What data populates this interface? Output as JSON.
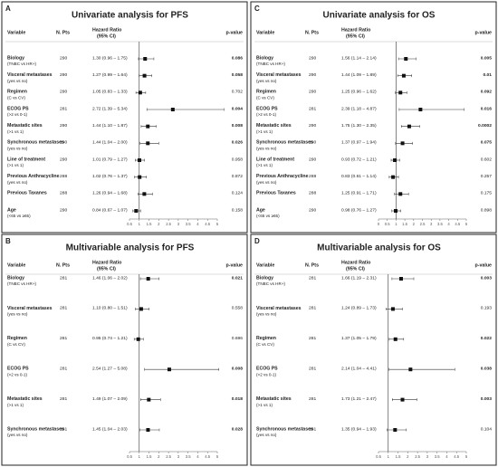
{
  "chart_data": [
    {
      "type": "forest",
      "panel": "A",
      "title": "Univariate analysis for PFS",
      "variable_header": "Variable",
      "n_header": "N. Pts",
      "hr_header": [
        "Hazard Ratio",
        "(95% CI)"
      ],
      "p_header": "p-value",
      "categories": [
        "Biology",
        "Visceral metastases",
        "Regimen",
        "ECOG PS",
        "Metastatic sites",
        "Synchronous metastases",
        "Line of treatment",
        "Previous Anthracycline",
        "Previous Taxanes",
        "Age"
      ],
      "sublabels": [
        "(TNBC vs HR+)",
        "(yes vs no)",
        "(C vs CV)",
        "(>2 vs 0-1)",
        "(>1 vs 1)",
        "(yes vs no)",
        "(>1 vs 1)",
        "(yes vs no)",
        null,
        "(<65 vs ≥65)"
      ],
      "n": [
        290,
        290,
        290,
        281,
        290,
        290,
        290,
        288,
        288,
        290
      ],
      "values": [
        1.3,
        1.27,
        1.05,
        2.72,
        1.44,
        1.44,
        1.01,
        1.02,
        1.26,
        0.84
      ],
      "lower": [
        0.96,
        0.99,
        0.83,
        1.39,
        1.1,
        1.04,
        0.79,
        0.76,
        0.94,
        0.67
      ],
      "upper": [
        1.75,
        1.64,
        1.33,
        5.34,
        1.87,
        2.0,
        1.27,
        1.37,
        1.68,
        1.07
      ],
      "value_labels": [
        "1.30 (0.96 – 1.75)",
        "1.27 (0.99 – 1.64)",
        "1.05 (0.83 – 1.33)",
        "2.72 (1.39 – 5.34)",
        "1.44 (1.10 – 1.87)",
        "1.44 (1.04 – 2.00)",
        "1.01 (0.79 – 1.27)",
        "1.02 (0.76 – 1.37)",
        "1.26 (0.94 – 1.68)",
        "0.84 (0.67 – 1.07)"
      ],
      "p_values": [
        "0.086",
        "0.058",
        "0.702",
        "0.004",
        "0.008",
        "0.026",
        "0.958",
        "0.872",
        "0.124",
        "0.158"
      ],
      "p_bold": [
        true,
        true,
        false,
        true,
        true,
        true,
        false,
        false,
        false,
        false
      ],
      "reference": 1,
      "xlim": [
        0.5,
        5
      ],
      "xticks": [
        0.5,
        1,
        1.5,
        2,
        2.5,
        3,
        3.5,
        4,
        4.5,
        5
      ]
    },
    {
      "type": "forest",
      "panel": "B",
      "title": "Multivariable analysis for PFS",
      "variable_header": "Variable",
      "n_header": "N. Pts",
      "hr_header": [
        "Hazard Ratio",
        "(95% CI)"
      ],
      "p_header": "p-value",
      "categories": [
        "Biology",
        "Visceral metastases",
        "Regimen",
        "ECOG PS",
        "Metastatic sites",
        "Synchronous metastases"
      ],
      "sublabels": [
        "(TNBC vs HR+)",
        "(yes vs no)",
        "(C vs CV)",
        "(>2 vs 0-1)",
        "(>1 vs 1)",
        "(yes vs no)"
      ],
      "n": [
        281,
        281,
        281,
        281,
        281,
        281
      ],
      "values": [
        1.46,
        1.1,
        0.95,
        2.54,
        1.49,
        1.45
      ],
      "lower": [
        1.06,
        0.8,
        0.74,
        1.27,
        1.07,
        1.04
      ],
      "upper": [
        2.02,
        1.51,
        1.21,
        5.08,
        2.09,
        2.03
      ],
      "value_labels": [
        "1.46 (1.06 – 2.02)",
        "1.10 (0.80 – 1.51)",
        "0.95 (0.74 – 1.21)",
        "2.54 (1.27 – 5.08)",
        "1.49 (1.07 – 2.09)",
        "1.45 (1.04 – 2.03)"
      ],
      "p_values": [
        "0.021",
        "0.558",
        "0.696",
        "0.008",
        "0.018",
        "0.028"
      ],
      "p_bold": [
        true,
        false,
        false,
        true,
        true,
        true
      ],
      "reference": 1,
      "xlim": [
        0.5,
        5
      ],
      "xticks": [
        0.5,
        1,
        1.5,
        2,
        2.5,
        3,
        3.5,
        4,
        4.5,
        5
      ]
    },
    {
      "type": "forest",
      "panel": "C",
      "title": "Univariate analysis for OS",
      "variable_header": "Variable",
      "n_header": "N. Pts",
      "hr_header": [
        "Hazard Ratio",
        "(95% CI)"
      ],
      "p_header": "p-value",
      "categories": [
        "Biology",
        "Visceral metastases",
        "Regimen",
        "ECOG PS",
        "Metastatic sites",
        "Synchronous metastases",
        "Line of treatment",
        "Previous Anthracycline",
        "Previous Taxanes",
        "Age"
      ],
      "sublabels": [
        "(TNBC vs HR+)",
        "(yes vs no)",
        "(C vs CV)",
        "(>2 vs 0-1)",
        "(>1 vs 1)",
        "(yes vs no)",
        "(>1 vs 1)",
        "(yes vs no)",
        null,
        "(<65 vs ≥65)"
      ],
      "n": [
        290,
        290,
        290,
        281,
        290,
        290,
        290,
        288,
        288,
        290
      ],
      "values": [
        1.56,
        1.44,
        1.25,
        2.39,
        1.75,
        1.37,
        0.93,
        0.83,
        1.25,
        0.98
      ],
      "lower": [
        1.14,
        1.09,
        0.96,
        1.18,
        1.3,
        0.97,
        0.72,
        0.61,
        0.91,
        0.76
      ],
      "upper": [
        2.14,
        1.89,
        1.62,
        4.87,
        2.35,
        1.94,
        1.21,
        1.14,
        1.71,
        1.27
      ],
      "value_labels": [
        "1.56 (1.14 – 2.14)",
        "1.44 (1.09 – 1.89)",
        "1.25 (0.96 – 1.62)",
        "2.39 (1.18 – 4.87)",
        "1.75 (1.30 – 2.35)",
        "1.37 (0.97 – 1.94)",
        "0.93 (0.72 – 1.21)",
        "0.83 (0.61 – 1.14)",
        "1.25 (0.91 – 1.71)",
        "0.98 (0.76 – 1.27)"
      ],
      "p_values": [
        "0.005",
        "0.01",
        "0.092",
        "0.016",
        "0.0002",
        "0.075",
        "0.602",
        "0.257",
        "0.175",
        "0.898"
      ],
      "p_bold": [
        true,
        true,
        true,
        true,
        true,
        true,
        false,
        false,
        false,
        false
      ],
      "reference": 1,
      "xlim": [
        0,
        5
      ],
      "xticks": [
        0,
        0.5,
        1,
        1.5,
        2,
        2.5,
        3,
        3.5,
        4,
        4.5,
        5
      ]
    },
    {
      "type": "forest",
      "panel": "D",
      "title": "Multivariable analysis for OS",
      "variable_header": "Variable",
      "n_header": "N. Pts",
      "hr_header": [
        "Hazard Ratio",
        "(95% CI)"
      ],
      "p_header": "p-value",
      "categories": [
        "Biology",
        "Visceral metastases",
        "Regimen",
        "ECOG PS",
        "Metastatic sites",
        "Synchronous metastases"
      ],
      "sublabels": [
        "(TNBC vs HR+)",
        "(yes vs no)",
        "(C vs CV)",
        "(>2 vs 0-1)",
        "(>1 vs 1)",
        "(yes vs no)"
      ],
      "n": [
        281,
        281,
        281,
        281,
        281,
        281
      ],
      "values": [
        1.66,
        1.24,
        1.37,
        2.14,
        1.73,
        1.35
      ],
      "lower": [
        1.19,
        0.89,
        1.05,
        1.04,
        1.21,
        0.94
      ],
      "upper": [
        2.31,
        1.73,
        1.79,
        4.41,
        2.47,
        1.93
      ],
      "value_labels": [
        "1.66 (1.19 – 2.31)",
        "1.24 (0.89 – 1.73)",
        "1.37 (1.05 – 1.79)",
        "2.14 (1.04 – 4.41)",
        "1.73 (1.21 – 2.47)",
        "1.35 (0.94 – 1.93)"
      ],
      "p_values": [
        "0.003",
        "0.193",
        "0.022",
        "0.038",
        "0.003",
        "0.104"
      ],
      "p_bold": [
        true,
        false,
        true,
        true,
        true,
        false
      ],
      "reference": 1,
      "xlim": [
        0.5,
        5
      ],
      "xticks": [
        0.5,
        1,
        1.5,
        2,
        2.5,
        3,
        3.5,
        4,
        4.5,
        5
      ]
    }
  ]
}
